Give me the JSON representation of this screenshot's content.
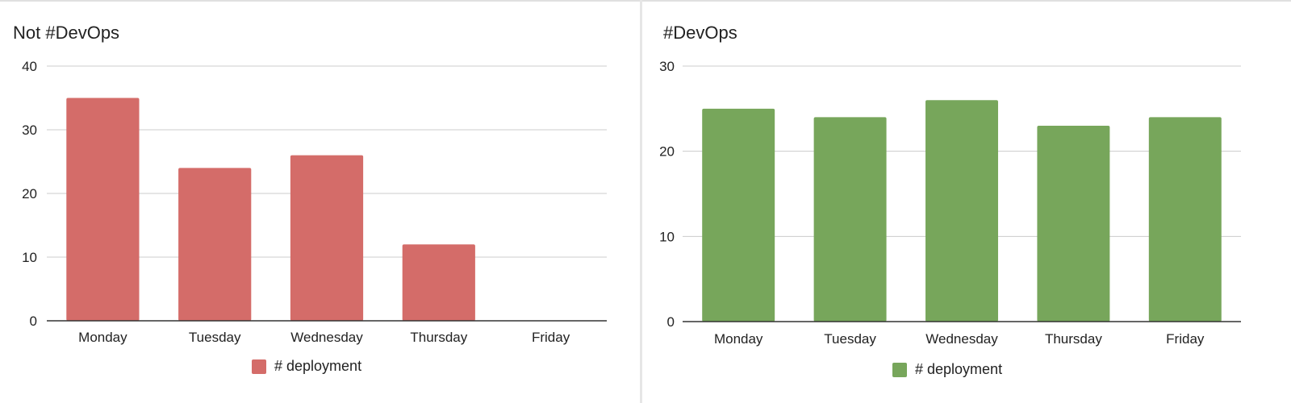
{
  "chart_data": [
    {
      "type": "bar",
      "title": "Not #DevOps",
      "categories": [
        "Monday",
        "Tuesday",
        "Wednesday",
        "Thursday",
        "Friday"
      ],
      "series": [
        {
          "name": "# deployment",
          "values": [
            35,
            24,
            26,
            12,
            0
          ]
        }
      ],
      "ylim": [
        0,
        40
      ],
      "yticks": [
        0,
        10,
        20,
        30,
        40
      ],
      "grid": true,
      "legend": "bottom",
      "color": "#d46c69"
    },
    {
      "type": "bar",
      "title": "#DevOps",
      "categories": [
        "Monday",
        "Tuesday",
        "Wednesday",
        "Thursday",
        "Friday"
      ],
      "series": [
        {
          "name": "# deployment",
          "values": [
            25,
            24,
            26,
            23,
            24
          ]
        }
      ],
      "ylim": [
        0,
        30
      ],
      "yticks": [
        0,
        10,
        20,
        30
      ],
      "grid": true,
      "legend": "bottom",
      "color": "#77a65b"
    }
  ]
}
